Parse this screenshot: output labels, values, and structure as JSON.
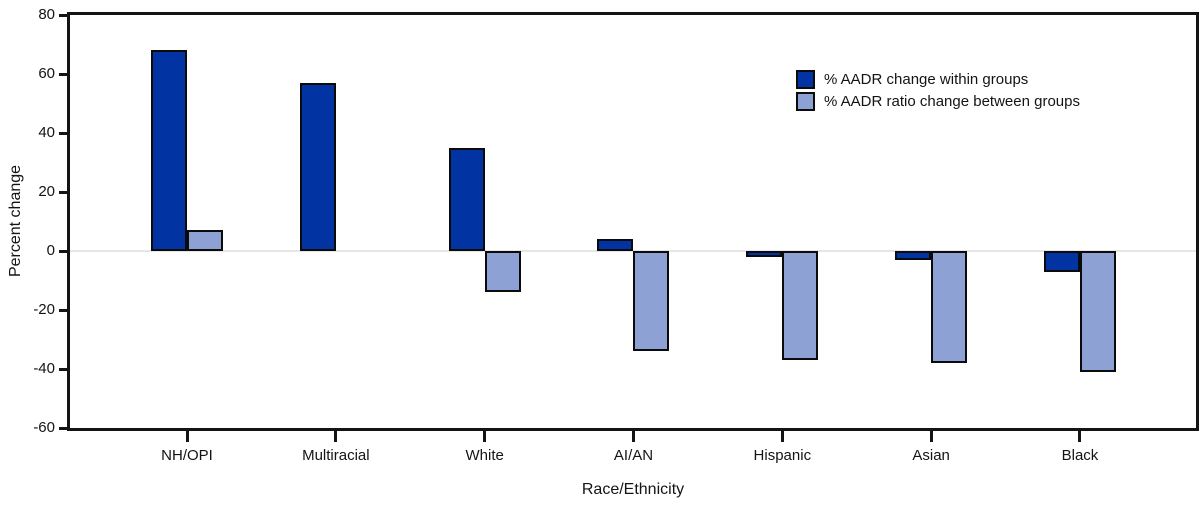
{
  "chart_data": {
    "type": "bar",
    "title": "",
    "xlabel": "Race/Ethnicity",
    "ylabel": "Percent change",
    "categories": [
      "NH/OPI",
      "Multiracial",
      "White",
      "AI/AN",
      "Hispanic",
      "Asian",
      "Black"
    ],
    "series": [
      {
        "name": "% AADR change within groups",
        "color": "#0233a3",
        "values": [
          68,
          57,
          35,
          4,
          -2,
          -3,
          -7
        ]
      },
      {
        "name": "% AADR ratio change between groups",
        "color": "#8da1d5",
        "values": [
          7,
          null,
          -14,
          -34,
          -37,
          -38,
          -41
        ]
      }
    ],
    "ylim": [
      -60,
      80
    ],
    "yticks": [
      80,
      60,
      40,
      20,
      0,
      -20,
      -40,
      -60
    ],
    "grid": "zero-line-only",
    "legend_position": "upper-right",
    "bar_outline_color": "#0b0b0b",
    "zero_line_color": "#e6e6e6",
    "axis_color": "#141414"
  }
}
